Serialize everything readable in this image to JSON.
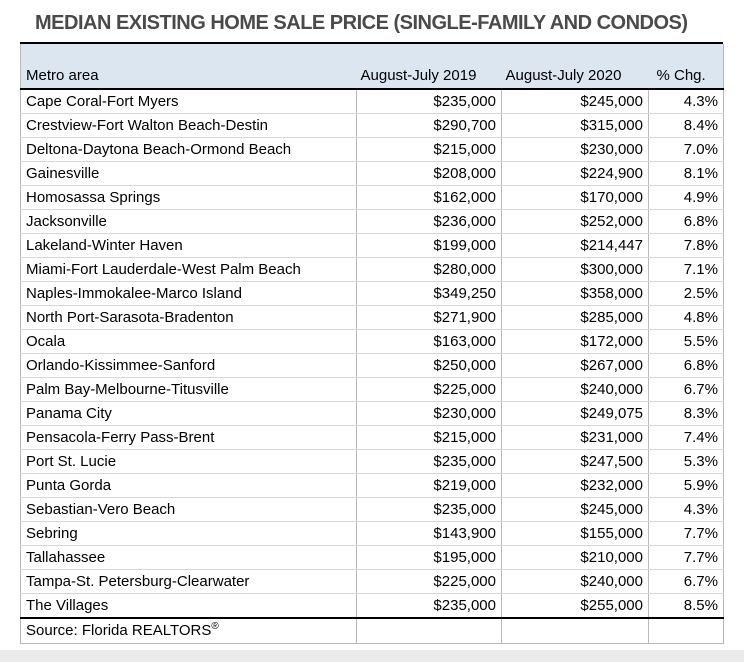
{
  "chart_data": {
    "type": "table",
    "title": "MEDIAN EXISTING HOME SALE PRICE (SINGLE-FAMILY AND CONDOS)",
    "columns": [
      "Metro area",
      "August-July 2019",
      "August-July 2020",
      "% Chg."
    ],
    "rows": [
      [
        "Cape Coral-Fort Myers",
        "$235,000",
        "$245,000",
        "4.3%"
      ],
      [
        "Crestview-Fort Walton Beach-Destin",
        "$290,700",
        "$315,000",
        "8.4%"
      ],
      [
        "Deltona-Daytona Beach-Ormond Beach",
        "$215,000",
        "$230,000",
        "7.0%"
      ],
      [
        "Gainesville",
        "$208,000",
        "$224,900",
        "8.1%"
      ],
      [
        "Homosassa Springs",
        "$162,000",
        "$170,000",
        "4.9%"
      ],
      [
        "Jacksonville",
        "$236,000",
        "$252,000",
        "6.8%"
      ],
      [
        "Lakeland-Winter Haven",
        "$199,000",
        "$214,447",
        "7.8%"
      ],
      [
        "Miami-Fort Lauderdale-West Palm Beach",
        "$280,000",
        "$300,000",
        "7.1%"
      ],
      [
        "Naples-Immokalee-Marco Island",
        "$349,250",
        "$358,000",
        "2.5%"
      ],
      [
        "North Port-Sarasota-Bradenton",
        "$271,900",
        "$285,000",
        "4.8%"
      ],
      [
        "Ocala",
        "$163,000",
        "$172,000",
        "5.5%"
      ],
      [
        "Orlando-Kissimmee-Sanford",
        "$250,000",
        "$267,000",
        "6.8%"
      ],
      [
        "Palm Bay-Melbourne-Titusville",
        "$225,000",
        "$240,000",
        "6.7%"
      ],
      [
        "Panama City",
        "$230,000",
        "$249,075",
        "8.3%"
      ],
      [
        "Pensacola-Ferry Pass-Brent",
        "$215,000",
        "$231,000",
        "7.4%"
      ],
      [
        "Port St. Lucie",
        "$235,000",
        "$247,500",
        "5.3%"
      ],
      [
        "Punta Gorda",
        "$219,000",
        "$232,000",
        "5.9%"
      ],
      [
        "Sebastian-Vero Beach",
        "$235,000",
        "$245,000",
        "4.3%"
      ],
      [
        "Sebring",
        "$143,900",
        "$155,000",
        "7.7%"
      ],
      [
        "Tallahassee",
        "$195,000",
        "$210,000",
        "7.7%"
      ],
      [
        "Tampa-St. Petersburg-Clearwater",
        "$225,000",
        "$240,000",
        "6.7%"
      ],
      [
        "The Villages",
        "$235,000",
        "$255,000",
        "8.5%"
      ]
    ],
    "source_label": "Source: Florida REALTORS",
    "registered_mark": "®"
  },
  "colors": {
    "header_bg": "#dce6f1",
    "title_text": "#4a4a4a",
    "strong_line": "#000000",
    "grid_vertical": "#b9b9b9",
    "grid_horizontal": "#d6d6d6",
    "page_bg": "#ffffff",
    "window_strip": "#ebebeb"
  }
}
